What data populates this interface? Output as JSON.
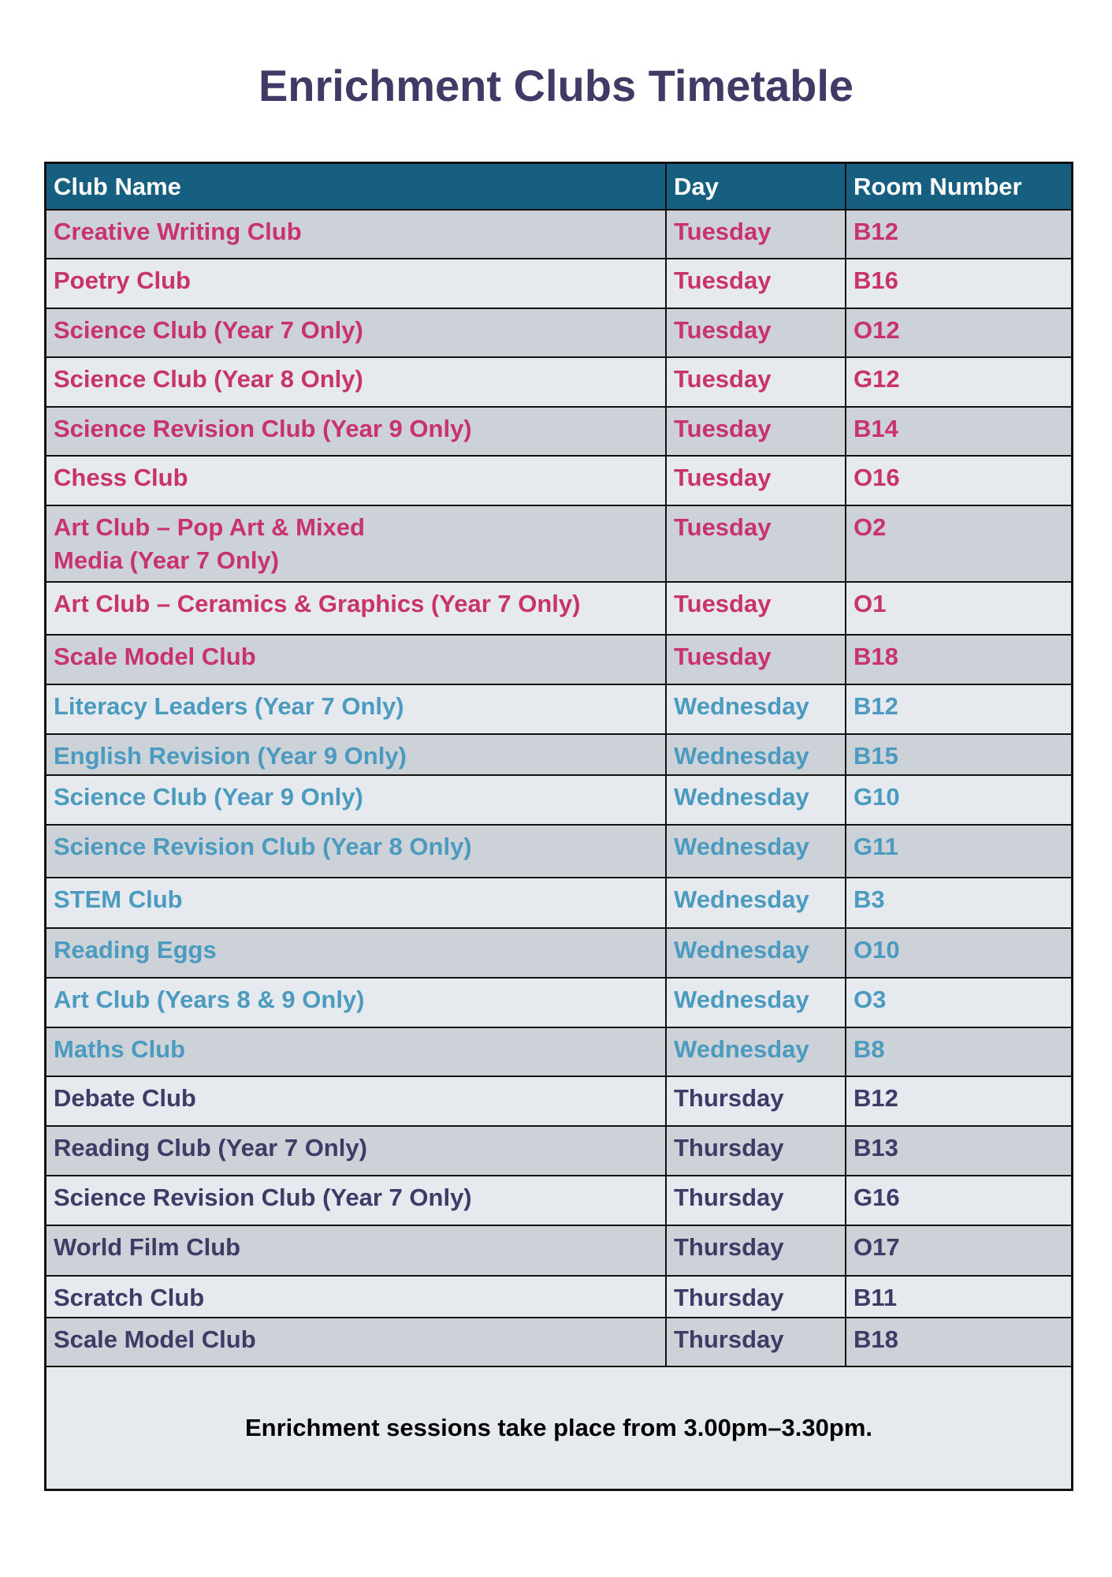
{
  "title": "Enrichment Clubs Timetable",
  "headers": [
    "Club Name",
    "Day",
    "Room Number"
  ],
  "colors": {
    "header_bg": "#165f80",
    "tuesday": "#c8336b",
    "wednesday": "#4a9bbf",
    "thursday": "#3f3a66",
    "row_dark": "#cdd1d8",
    "row_light": "#e6e9ed"
  },
  "rows": [
    {
      "club": "Creative Writing Club",
      "day": "Tuesday",
      "room": "B12"
    },
    {
      "club": "Poetry Club",
      "day": "Tuesday",
      "room": "B16"
    },
    {
      "club": "Science Club (Year 7 Only)",
      "day": "Tuesday",
      "room": "O12"
    },
    {
      "club": "Science Club (Year 8 Only)",
      "day": "Tuesday",
      "room": "G12"
    },
    {
      "club": "Science Revision Club (Year 9 Only)",
      "day": "Tuesday",
      "room": "B14"
    },
    {
      "club": "Chess Club",
      "day": "Tuesday",
      "room": "O16"
    },
    {
      "club": "Art Club – Pop Art & Mixed Media (Year 7 Only)",
      "day": "Tuesday",
      "room": "O2"
    },
    {
      "club": "Art Club – Ceramics & Graphics (Year 7 Only)",
      "day": "Tuesday",
      "room": "O1"
    },
    {
      "club": "Scale Model Club",
      "day": "Tuesday",
      "room": "B18"
    },
    {
      "club": "Literacy Leaders (Year 7 Only)",
      "day": "Wednesday",
      "room": "B12"
    },
    {
      "club": "English Revision (Year 9 Only)",
      "day": "Wednesday",
      "room": "B15"
    },
    {
      "club": "Science Club (Year 9 Only)",
      "day": "Wednesday",
      "room": "G10"
    },
    {
      "club": "Science Revision Club (Year 8 Only)",
      "day": "Wednesday",
      "room": "G11"
    },
    {
      "club": "STEM Club",
      "day": "Wednesday",
      "room": "B3"
    },
    {
      "club": "Reading Eggs",
      "day": "Wednesday",
      "room": "O10"
    },
    {
      "club": "Art Club (Years 8 & 9 Only)",
      "day": "Wednesday",
      "room": "O3"
    },
    {
      "club": "Maths Club",
      "day": "Wednesday",
      "room": "B8"
    },
    {
      "club": "Debate Club",
      "day": "Thursday",
      "room": "B12"
    },
    {
      "club": "Reading Club (Year 7 Only)",
      "day": "Thursday",
      "room": "B13"
    },
    {
      "club": "Science Revision Club (Year 7 Only)",
      "day": "Thursday",
      "room": "G16"
    },
    {
      "club": "World Film Club",
      "day": "Thursday",
      "room": "O17"
    },
    {
      "club": "Scratch Club",
      "day": "Thursday",
      "room": "B11"
    },
    {
      "club": "Scale Model Club",
      "day": "Thursday",
      "room": "B18"
    }
  ],
  "footer": "Enrichment sessions take place from 3.00pm–3.30pm."
}
